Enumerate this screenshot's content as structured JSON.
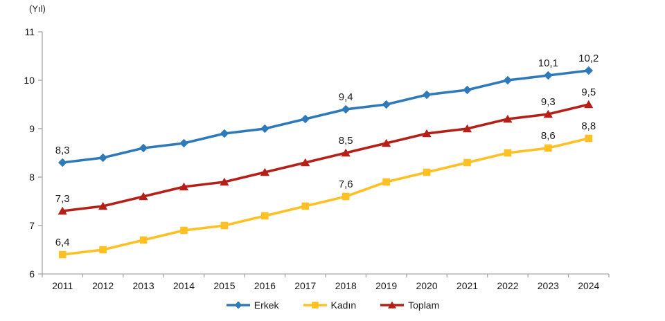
{
  "chart_data": {
    "type": "line",
    "title": "",
    "unit_label": "(Yıl)",
    "categories": [
      "2011",
      "2012",
      "2013",
      "2014",
      "2015",
      "2016",
      "2017",
      "2018",
      "2019",
      "2020",
      "2021",
      "2022",
      "2023",
      "2024"
    ],
    "series": [
      {
        "name": "Erkek",
        "color": "#2E79B9",
        "marker": "diamond",
        "values": [
          8.3,
          8.4,
          8.6,
          8.7,
          8.9,
          9.0,
          9.2,
          9.4,
          9.5,
          9.7,
          9.8,
          10.0,
          10.1,
          10.2
        ]
      },
      {
        "name": "Kadın",
        "color": "#FFC023",
        "marker": "square",
        "values": [
          6.4,
          6.5,
          6.7,
          6.9,
          7.0,
          7.2,
          7.4,
          7.6,
          7.9,
          8.1,
          8.3,
          8.5,
          8.6,
          8.8
        ]
      },
      {
        "name": "Toplam",
        "color": "#B42018",
        "marker": "triangle",
        "values": [
          7.3,
          7.4,
          7.6,
          7.8,
          7.9,
          8.1,
          8.3,
          8.5,
          8.7,
          8.9,
          9.0,
          9.2,
          9.3,
          9.5
        ]
      }
    ],
    "data_labels": {
      "labeled_category_indices": [
        0,
        7,
        12,
        13
      ],
      "format": "comma-decimal",
      "examples": [
        "8,3",
        "9,4",
        "10,1",
        "10,2",
        "7,3",
        "8,5",
        "9,3",
        "9,5",
        "6,4",
        "7,6",
        "8,6",
        "8,8"
      ]
    },
    "ylim": [
      6,
      11
    ],
    "yticks": [
      6,
      7,
      8,
      9,
      10,
      11
    ],
    "grid": false,
    "legend_position": "bottom",
    "axis_color": "#A6A6A6",
    "text_color": "#1A1A1A",
    "background_color": "#FFFFFF"
  }
}
